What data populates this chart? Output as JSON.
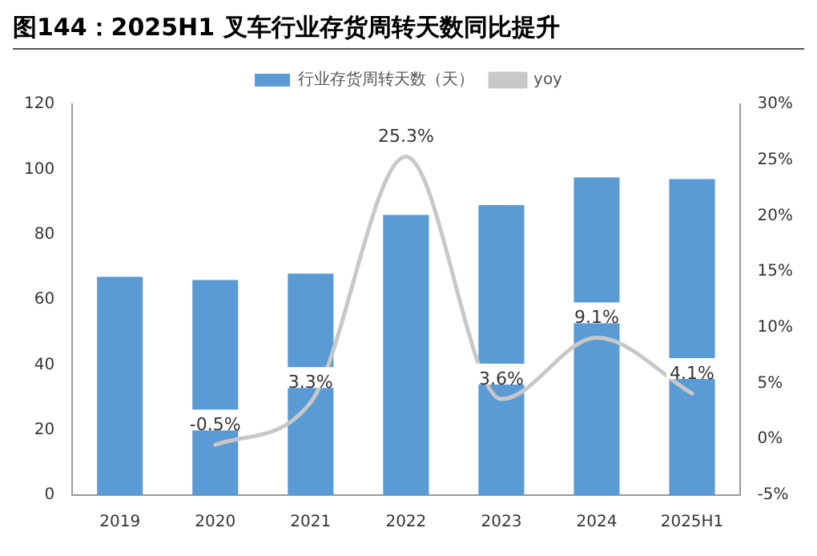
{
  "chart_data": {
    "type": "bar",
    "title": "图144：2025H1 叉车行业存货周转天数同比提升",
    "categories": [
      "2019",
      "2020",
      "2021",
      "2022",
      "2023",
      "2024",
      "2025H1"
    ],
    "series": [
      {
        "name": "行业存货周转天数（天）",
        "color": "#5b9bd5",
        "values": [
          67,
          66,
          68,
          86,
          89,
          97.5,
          97
        ]
      },
      {
        "name": "yoy",
        "type": "line",
        "axis": "y2",
        "color": "#c8c8c8",
        "values": [
          null,
          -0.5,
          3.3,
          25.3,
          3.6,
          9.1,
          4.1
        ],
        "value_labels": [
          null,
          "-0.5%",
          "3.3%",
          "25.3%",
          "3.6%",
          "9.1%",
          "4.1%"
        ]
      }
    ],
    "ylim": [
      0,
      120
    ],
    "yticks": [
      0,
      20,
      40,
      60,
      80,
      100,
      120
    ],
    "y2lim": [
      -5,
      30
    ],
    "y2ticks": [
      {
        "value": -5,
        "label": "-5%"
      },
      {
        "value": 0,
        "label": "0%"
      },
      {
        "value": 5,
        "label": "5%"
      },
      {
        "value": 10,
        "label": "10%"
      },
      {
        "value": 15,
        "label": "15%"
      },
      {
        "value": 20,
        "label": "20%"
      },
      {
        "value": 25,
        "label": "25%"
      },
      {
        "value": 30,
        "label": "30%"
      }
    ],
    "grid": false,
    "legend": "top",
    "marker": "none"
  }
}
